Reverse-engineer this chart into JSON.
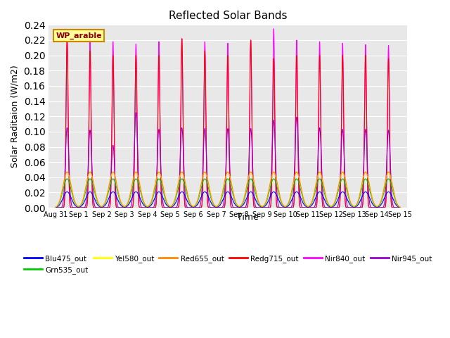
{
  "title": "Reflected Solar Bands",
  "xlabel": "Time",
  "ylabel": "Solar Raditaion (W/m2)",
  "annotation": "WP_arable",
  "ylim": [
    0.0,
    0.24
  ],
  "yticks": [
    0.0,
    0.02,
    0.04,
    0.06,
    0.08,
    0.1,
    0.12,
    0.14,
    0.16,
    0.18,
    0.2,
    0.22,
    0.24
  ],
  "xtick_labels": [
    "Aug 31",
    "Sep 1",
    "Sep 2",
    "Sep 3",
    "Sep 4",
    "Sep 5",
    "Sep 6",
    "Sep 7",
    "Sep 8",
    "Sep 9",
    "Sep 10",
    "Sep 11",
    "Sep 12",
    "Sep 13",
    "Sep 14",
    "Sep 15"
  ],
  "series": {
    "Blu475_out": {
      "color": "#0000FF"
    },
    "Grn535_out": {
      "color": "#00CC00"
    },
    "Yel580_out": {
      "color": "#FFFF00"
    },
    "Red655_out": {
      "color": "#FF8800"
    },
    "Redg715_out": {
      "color": "#FF0000"
    },
    "Nir840_out": {
      "color": "#FF00FF"
    },
    "Nir945_out": {
      "color": "#9900CC"
    }
  },
  "background_color": "#E8E8E8",
  "fig_bg": "#FFFFFF",
  "annotation_bg": "#FFFF99",
  "annotation_fg": "#880000",
  "annotation_border": "#CC8800",
  "nir840_peaks": [
    0.222,
    0.219,
    0.218,
    0.215,
    0.218,
    0.222,
    0.218,
    0.216,
    0.22,
    0.235,
    0.22,
    0.218,
    0.216,
    0.214,
    0.213
  ],
  "nir945_peaks": [
    0.105,
    0.102,
    0.082,
    0.125,
    0.103,
    0.105,
    0.104,
    0.104,
    0.104,
    0.115,
    0.119,
    0.105,
    0.103,
    0.103,
    0.102
  ],
  "redg715_peaks": [
    0.222,
    0.206,
    0.2,
    0.2,
    0.2,
    0.222,
    0.206,
    0.2,
    0.22,
    0.196,
    0.2,
    0.2,
    0.2,
    0.2,
    0.196
  ],
  "small_peaks": [
    0.021,
    0.038,
    0.046,
    0.047
  ],
  "day_mults_small": [
    1.0,
    1.0,
    1.0,
    1.0,
    1.0,
    1.0,
    1.0,
    1.0,
    1.0,
    1.0,
    1.0,
    1.0,
    1.0,
    1.0,
    1.0
  ]
}
